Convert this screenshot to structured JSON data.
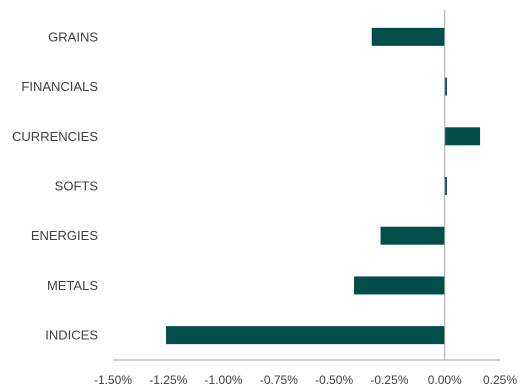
{
  "chart_data": {
    "type": "bar",
    "orientation": "horizontal",
    "categories": [
      "GRAINS",
      "FINANCIALS",
      "CURRENCIES",
      "SOFTS",
      "ENERGIES",
      "METALS",
      "INDICES"
    ],
    "values": [
      -0.33,
      0.01,
      0.16,
      0.01,
      -0.29,
      -0.41,
      -1.26
    ],
    "title": "",
    "xlabel": "",
    "ylabel": "",
    "xlim": [
      -1.5,
      0.25
    ],
    "x_ticks": [
      -1.5,
      -1.25,
      -1.0,
      -0.75,
      -0.5,
      -0.25,
      0.0,
      0.25
    ],
    "x_tick_labels": [
      "-1.50%",
      "-1.25%",
      "-1.00%",
      "-0.75%",
      "-0.50%",
      "-0.25%",
      "0.00%",
      "0.25%"
    ],
    "grid": false,
    "bar_color": "#004D4A",
    "axis_color": "#A6A6A6",
    "text_color": "#404040"
  }
}
